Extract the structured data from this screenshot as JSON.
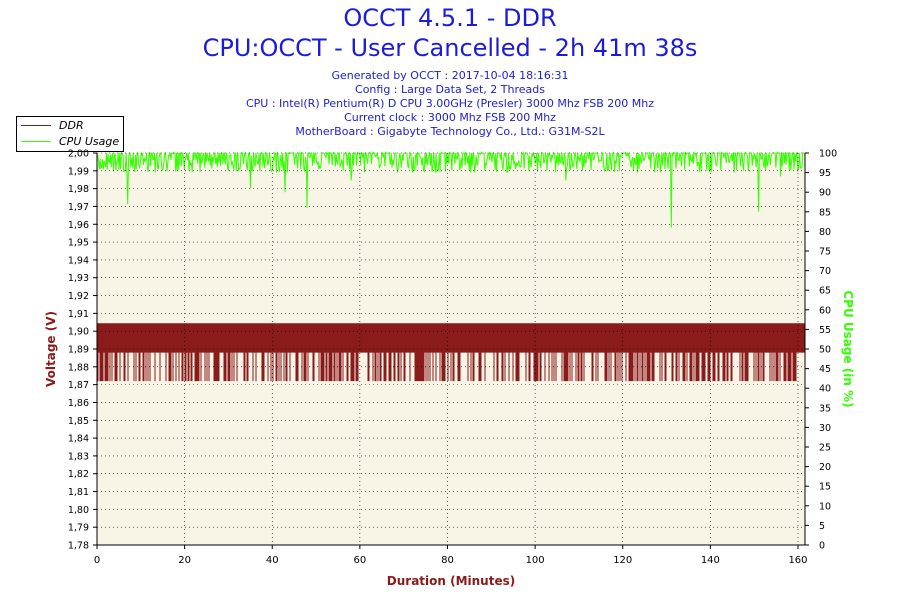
{
  "header": {
    "title": "OCCT 4.5.1 - DDR",
    "subtitle": "CPU:OCCT - User Cancelled - 2h 41m 38s",
    "info": [
      "Generated by OCCT : 2017-10-04 18:16:31",
      "Config : Large Data Set, 2 Threads",
      "CPU : Intel(R) Pentium(R) D CPU 3.00GHz (Presler) 3000 Mhz FSB 200 Mhz",
      "Current clock : 3000 Mhz FSB 200 Mhz",
      "MotherBoard : Gigabyte Technology Co., Ltd.: G31M-S2L"
    ]
  },
  "legend": {
    "items": [
      {
        "label": "DDR",
        "color": "#8b1a1a"
      },
      {
        "label": "CPU Usage",
        "color": "#33ff00"
      }
    ]
  },
  "chart_data": {
    "type": "line",
    "xlabel": "Duration (Minutes)",
    "ylabel": "Voltage (V)",
    "y2label": "CPU Usage (in %)",
    "xlim": [
      0,
      161.6
    ],
    "ylim": [
      1.78,
      2.0
    ],
    "y2lim": [
      0,
      100
    ],
    "x_ticks": [
      "0",
      "20",
      "40",
      "60",
      "80",
      "100",
      "120",
      "140",
      "160"
    ],
    "y_ticks": [
      "1,78",
      "1,79",
      "1,80",
      "1,81",
      "1,82",
      "1,83",
      "1,84",
      "1,85",
      "1,86",
      "1,87",
      "1,88",
      "1,89",
      "1,90",
      "1,91",
      "1,92",
      "1,93",
      "1,94",
      "1,95",
      "1,96",
      "1,97",
      "1,98",
      "1,99",
      "2,00"
    ],
    "y2_ticks": [
      "0",
      "5",
      "10",
      "15",
      "20",
      "25",
      "30",
      "35",
      "40",
      "45",
      "50",
      "55",
      "60",
      "65",
      "70",
      "75",
      "80",
      "85",
      "90",
      "95",
      "100"
    ],
    "grid": true,
    "background": "#f8f4e6",
    "series": [
      {
        "name": "DDR",
        "axis": "left",
        "color": "#8b1a1a",
        "baseline": 1.904,
        "levels": [
          1.904,
          1.888,
          1.872
        ]
      },
      {
        "name": "CPU Usage",
        "axis": "right",
        "color": "#33ff00",
        "baseline": 99,
        "range": [
          95,
          100
        ],
        "dips": [
          [
            7,
            87
          ],
          [
            35,
            91
          ],
          [
            43,
            90
          ],
          [
            48,
            86
          ],
          [
            58,
            93
          ],
          [
            72,
            95
          ],
          [
            107,
            93
          ],
          [
            131,
            81
          ],
          [
            151,
            85
          ],
          [
            156,
            94
          ]
        ]
      }
    ]
  }
}
